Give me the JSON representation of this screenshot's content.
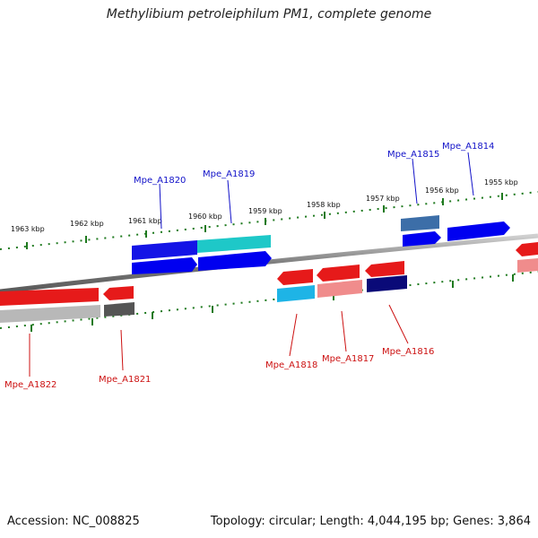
{
  "title": "Methylibium petroleiphilum PM1, complete genome",
  "footer": {
    "accession": "Accession: NC_008825",
    "topology": "Topology: circular; Length: 4,044,195 bp; Genes: 3,864"
  },
  "colors": {
    "backbone": "#8a8a8a",
    "forward_tick": "#1f7a1f",
    "forward_label": "#1010c8",
    "reverse_label": "#cc1010"
  },
  "scale_labels": [
    "1963 kbp",
    "1962 kbp",
    "1961 kbp",
    "1960 kbp",
    "1959 kbp",
    "1958 kbp",
    "1957 kbp",
    "1956 kbp",
    "1955 kbp"
  ],
  "genes": [
    {
      "id": "Mpe_A1822",
      "strand": "-"
    },
    {
      "id": "Mpe_A1821",
      "strand": "-"
    },
    {
      "id": "Mpe_A1820",
      "strand": "+"
    },
    {
      "id": "Mpe_A1819",
      "strand": "+"
    },
    {
      "id": "Mpe_A1818",
      "strand": "-"
    },
    {
      "id": "Mpe_A1817",
      "strand": "-"
    },
    {
      "id": "Mpe_A1816",
      "strand": "-"
    },
    {
      "id": "Mpe_A1815",
      "strand": "+"
    },
    {
      "id": "Mpe_A1814",
      "strand": "+"
    }
  ]
}
